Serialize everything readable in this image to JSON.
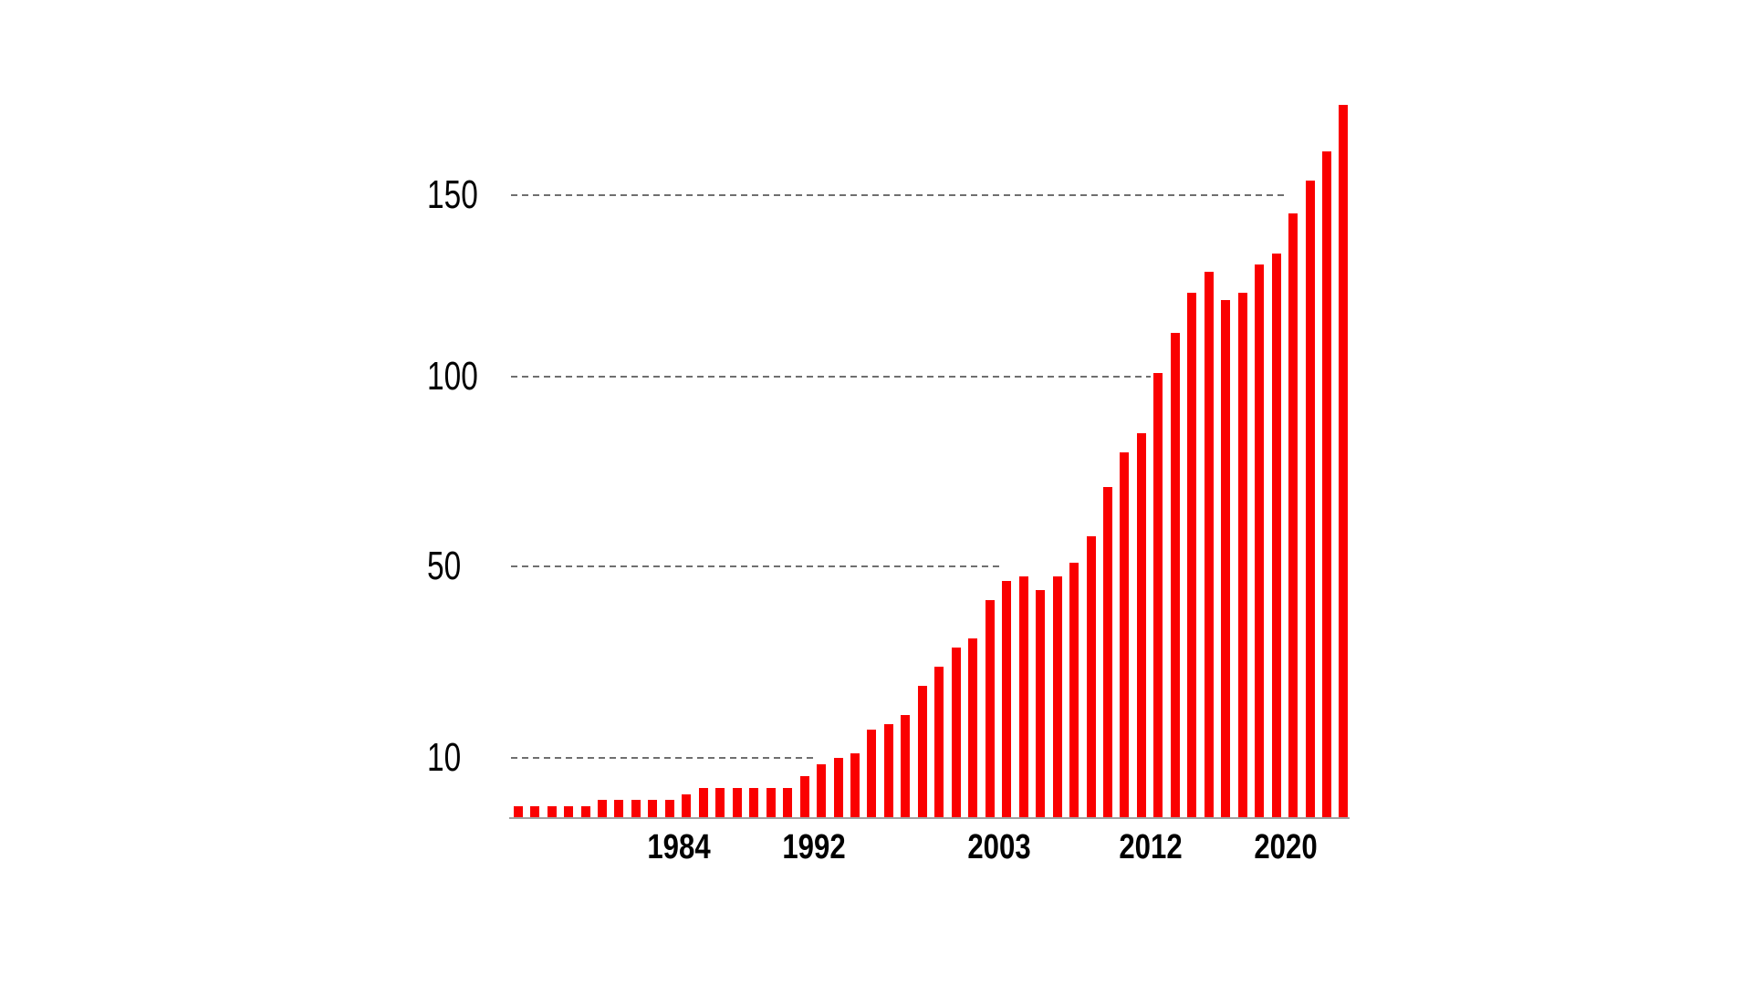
{
  "chart_data": {
    "type": "bar",
    "x": [
      1974,
      1975,
      1976,
      1977,
      1978,
      1979,
      1980,
      1981,
      1982,
      1983,
      1984,
      1985,
      1986,
      1987,
      1988,
      1989,
      1990,
      1991,
      1992,
      1993,
      1994,
      1995,
      1996,
      1997,
      1998,
      1999,
      2000,
      2001,
      2002,
      2003,
      2004,
      2005,
      2006,
      2007,
      2008,
      2009,
      2010,
      2011,
      2012,
      2013,
      2014,
      2015,
      2016,
      2017,
      2018,
      2019,
      2020,
      2021,
      2022,
      2023
    ],
    "values": [
      2,
      2,
      2,
      2,
      2,
      3,
      3,
      3,
      3,
      3,
      4,
      5,
      5,
      5,
      5,
      5,
      5,
      7,
      9,
      10,
      11,
      16,
      17,
      19,
      25,
      29,
      33,
      35,
      43,
      47,
      48,
      45,
      48,
      51,
      58,
      71,
      80,
      85,
      101,
      112,
      123,
      129,
      121,
      123,
      131,
      134,
      145,
      154,
      162,
      175
    ],
    "y_ticks": [
      10,
      50,
      100,
      150
    ],
    "y_tick_labels": [
      "10",
      "50",
      "100",
      "150"
    ],
    "x_tick_years": [
      1984,
      1992,
      2003,
      2012,
      2020
    ],
    "x_tick_labels": [
      "1984",
      "1992",
      "2003",
      "2012",
      "2020"
    ],
    "ylim": [
      0,
      178
    ],
    "y_scale": "piecewise non-linear: ticks 10/50/100/150 drawn at roughly equal visual intervals",
    "grid": "horizontal dashed gridlines at each y tick, truncated just before the first bar that reaches them",
    "legend": "none",
    "xlabel": "",
    "ylabel": "",
    "style": {
      "bar_color": "#fa0000",
      "gridline_color": "#6f6f6f",
      "axis_line_color": "#a1a1a1",
      "label_color": "#000000",
      "background": "#ffffff"
    }
  }
}
